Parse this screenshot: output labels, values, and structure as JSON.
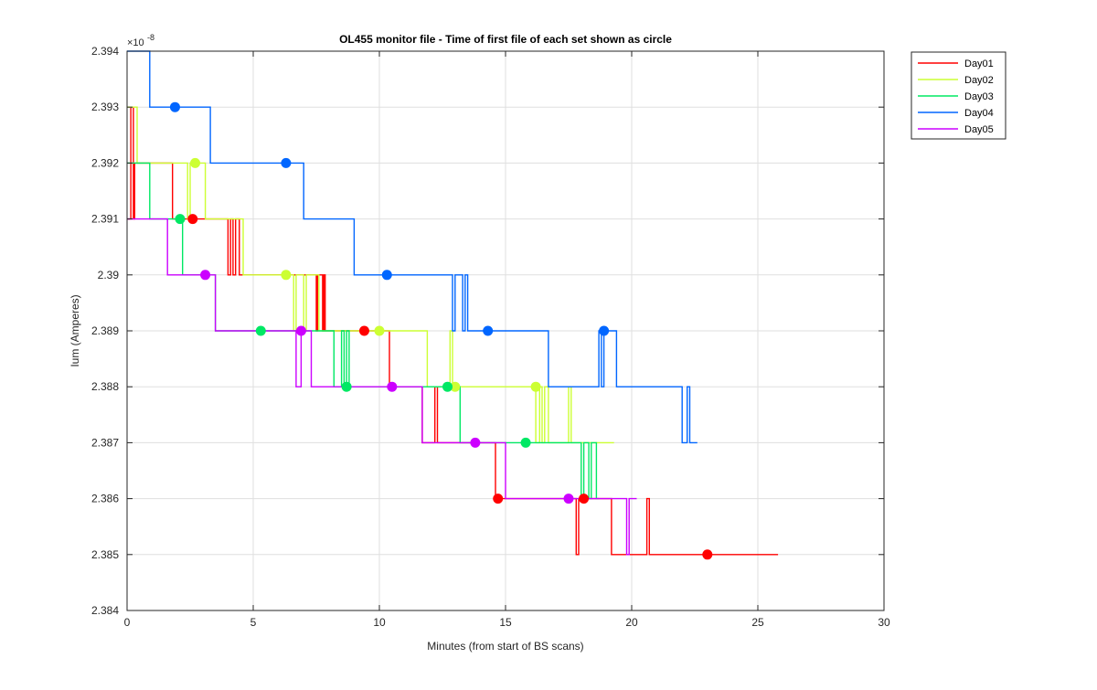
{
  "chart_data": {
    "type": "line",
    "title": "OL455 monitor file - Time of first file of each set shown as circle",
    "xlabel": "Minutes (from start of BS scans)",
    "ylabel": "Ium (Amperes)",
    "y_exponent_label": "×10",
    "y_exponent_power": "-8",
    "xlim": [
      0,
      30
    ],
    "ylim": [
      2.384,
      2.394
    ],
    "x_ticks": [
      0,
      5,
      10,
      15,
      20,
      25,
      30
    ],
    "x_tick_labels": [
      "0",
      "5",
      "10",
      "15",
      "20",
      "25",
      "30"
    ],
    "y_ticks": [
      2.384,
      2.385,
      2.386,
      2.387,
      2.388,
      2.389,
      2.39,
      2.391,
      2.392,
      2.393,
      2.394
    ],
    "y_tick_labels": [
      "2.384",
      "2.385",
      "2.386",
      "2.387",
      "2.388",
      "2.389",
      "2.39",
      "2.391",
      "2.392",
      "2.393",
      "2.394"
    ],
    "grid": true,
    "legend_position": "outside-top-right",
    "series": [
      {
        "name": "Day01",
        "color": "#ff0000",
        "steps": [
          [
            0,
            2.391
          ],
          [
            0.15,
            2.393
          ],
          [
            0.25,
            2.391
          ],
          [
            0.3,
            2.392
          ],
          [
            1.8,
            2.391
          ],
          [
            3.0,
            2.391
          ],
          [
            4.0,
            2.39
          ],
          [
            4.1,
            2.391
          ],
          [
            4.2,
            2.39
          ],
          [
            4.3,
            2.391
          ],
          [
            4.45,
            2.39
          ],
          [
            7.5,
            2.389
          ],
          [
            7.55,
            2.39
          ],
          [
            7.75,
            2.389
          ],
          [
            7.8,
            2.39
          ],
          [
            7.85,
            2.389
          ],
          [
            10.4,
            2.388
          ],
          [
            11.7,
            2.387
          ],
          [
            12.2,
            2.388
          ],
          [
            12.3,
            2.387
          ],
          [
            14.6,
            2.386
          ],
          [
            17.8,
            2.385
          ],
          [
            17.9,
            2.386
          ],
          [
            19.2,
            2.385
          ],
          [
            20.6,
            2.386
          ],
          [
            20.7,
            2.385
          ],
          [
            25.8,
            2.385
          ]
        ],
        "first_file_markers": [
          [
            2.6,
            2.391
          ],
          [
            9.4,
            2.389
          ],
          [
            14.7,
            2.386
          ],
          [
            18.1,
            2.386
          ],
          [
            23.0,
            2.385
          ]
        ]
      },
      {
        "name": "Day02",
        "color": "#ccff33",
        "steps": [
          [
            0,
            2.393
          ],
          [
            0.4,
            2.392
          ],
          [
            2.4,
            2.391
          ],
          [
            2.5,
            2.392
          ],
          [
            3.1,
            2.391
          ],
          [
            4.6,
            2.39
          ],
          [
            6.6,
            2.389
          ],
          [
            6.7,
            2.39
          ],
          [
            7.0,
            2.389
          ],
          [
            7.1,
            2.39
          ],
          [
            7.6,
            2.389
          ],
          [
            11.9,
            2.388
          ],
          [
            12.8,
            2.389
          ],
          [
            12.9,
            2.388
          ],
          [
            16.2,
            2.387
          ],
          [
            16.35,
            2.388
          ],
          [
            16.45,
            2.387
          ],
          [
            16.55,
            2.388
          ],
          [
            16.7,
            2.387
          ],
          [
            17.5,
            2.388
          ],
          [
            17.6,
            2.387
          ],
          [
            18.0,
            2.387
          ],
          [
            19.3,
            2.387
          ]
        ],
        "first_file_markers": [
          [
            2.7,
            2.392
          ],
          [
            6.3,
            2.39
          ],
          [
            10.0,
            2.389
          ],
          [
            13.0,
            2.388
          ],
          [
            16.2,
            2.388
          ]
        ]
      },
      {
        "name": "Day03",
        "color": "#00e864",
        "steps": [
          [
            0,
            2.392
          ],
          [
            0.9,
            2.391
          ],
          [
            2.2,
            2.39
          ],
          [
            3.5,
            2.389
          ],
          [
            8.2,
            2.388
          ],
          [
            8.5,
            2.389
          ],
          [
            8.6,
            2.388
          ],
          [
            8.7,
            2.389
          ],
          [
            8.8,
            2.388
          ],
          [
            13.2,
            2.387
          ],
          [
            18.0,
            2.386
          ],
          [
            18.1,
            2.387
          ],
          [
            18.3,
            2.386
          ],
          [
            18.4,
            2.387
          ],
          [
            18.6,
            2.386
          ],
          [
            18.7,
            2.386
          ]
        ],
        "first_file_markers": [
          [
            2.1,
            2.391
          ],
          [
            5.3,
            2.389
          ],
          [
            8.7,
            2.388
          ],
          [
            12.7,
            2.388
          ],
          [
            15.8,
            2.387
          ]
        ]
      },
      {
        "name": "Day04",
        "color": "#0066ff",
        "steps": [
          [
            0,
            2.394
          ],
          [
            0.9,
            2.393
          ],
          [
            3.3,
            2.392
          ],
          [
            7.0,
            2.391
          ],
          [
            9.0,
            2.39
          ],
          [
            12.9,
            2.389
          ],
          [
            13.0,
            2.39
          ],
          [
            13.3,
            2.389
          ],
          [
            13.4,
            2.39
          ],
          [
            13.5,
            2.389
          ],
          [
            16.7,
            2.388
          ],
          [
            18.7,
            2.389
          ],
          [
            18.8,
            2.388
          ],
          [
            18.9,
            2.389
          ],
          [
            19.4,
            2.388
          ],
          [
            22.0,
            2.387
          ],
          [
            22.2,
            2.388
          ],
          [
            22.3,
            2.387
          ],
          [
            22.6,
            2.387
          ]
        ],
        "first_file_markers": [
          [
            1.9,
            2.393
          ],
          [
            6.3,
            2.392
          ],
          [
            10.3,
            2.39
          ],
          [
            14.3,
            2.389
          ],
          [
            18.9,
            2.389
          ]
        ]
      },
      {
        "name": "Day05",
        "color": "#cc00ff",
        "steps": [
          [
            0,
            2.391
          ],
          [
            1.6,
            2.39
          ],
          [
            3.5,
            2.389
          ],
          [
            6.7,
            2.388
          ],
          [
            6.9,
            2.389
          ],
          [
            7.3,
            2.388
          ],
          [
            11.7,
            2.387
          ],
          [
            15.0,
            2.386
          ],
          [
            19.8,
            2.385
          ],
          [
            19.9,
            2.386
          ],
          [
            20.2,
            2.386
          ]
        ],
        "first_file_markers": [
          [
            3.1,
            2.39
          ],
          [
            6.9,
            2.389
          ],
          [
            10.5,
            2.388
          ],
          [
            13.8,
            2.387
          ],
          [
            17.5,
            2.386
          ]
        ]
      }
    ]
  }
}
